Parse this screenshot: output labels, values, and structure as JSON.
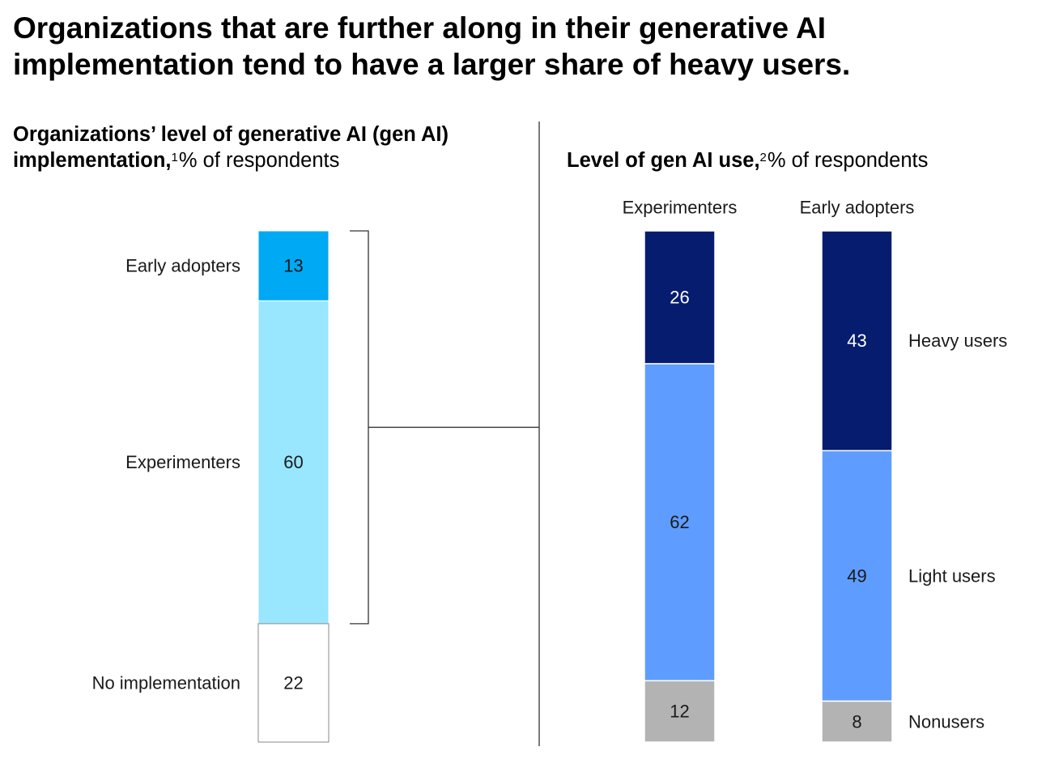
{
  "title": "Organizations that are further along in their generative AI implementation tend to have a larger share of heavy users.",
  "left_panel": {
    "subtitle_bold": "Organizations’ level of generative AI (gen AI) implementation,",
    "subtitle_sup": "1",
    "subtitle_rest": "% of respondents"
  },
  "right_panel": {
    "subtitle_bold": "Level of gen AI use,",
    "subtitle_sup": "2",
    "subtitle_rest": "% of respondents"
  },
  "colors": {
    "early_adopters": "#00a9f4",
    "experimenters": "#99e6ff",
    "no_implementation": "#ffffff",
    "heavy_users": "#051c6f",
    "light_users": "#5e9dff",
    "nonusers": "#b3b3b3",
    "rule": "#333333"
  },
  "chart_data": [
    {
      "type": "bar",
      "stacked": true,
      "series": [
        {
          "name": "Early adopters",
          "values": [
            13
          ]
        },
        {
          "name": "Experimenters",
          "values": [
            60
          ]
        },
        {
          "name": "No implementation",
          "values": [
            22
          ]
        }
      ]
    },
    {
      "type": "bar",
      "stacked": true,
      "categories": [
        "Experimenters",
        "Early adopters"
      ],
      "series": [
        {
          "name": "Heavy users",
          "values": [
            26,
            43
          ]
        },
        {
          "name": "Light users",
          "values": [
            62,
            49
          ]
        },
        {
          "name": "Nonusers",
          "values": [
            12,
            8
          ]
        }
      ]
    }
  ]
}
